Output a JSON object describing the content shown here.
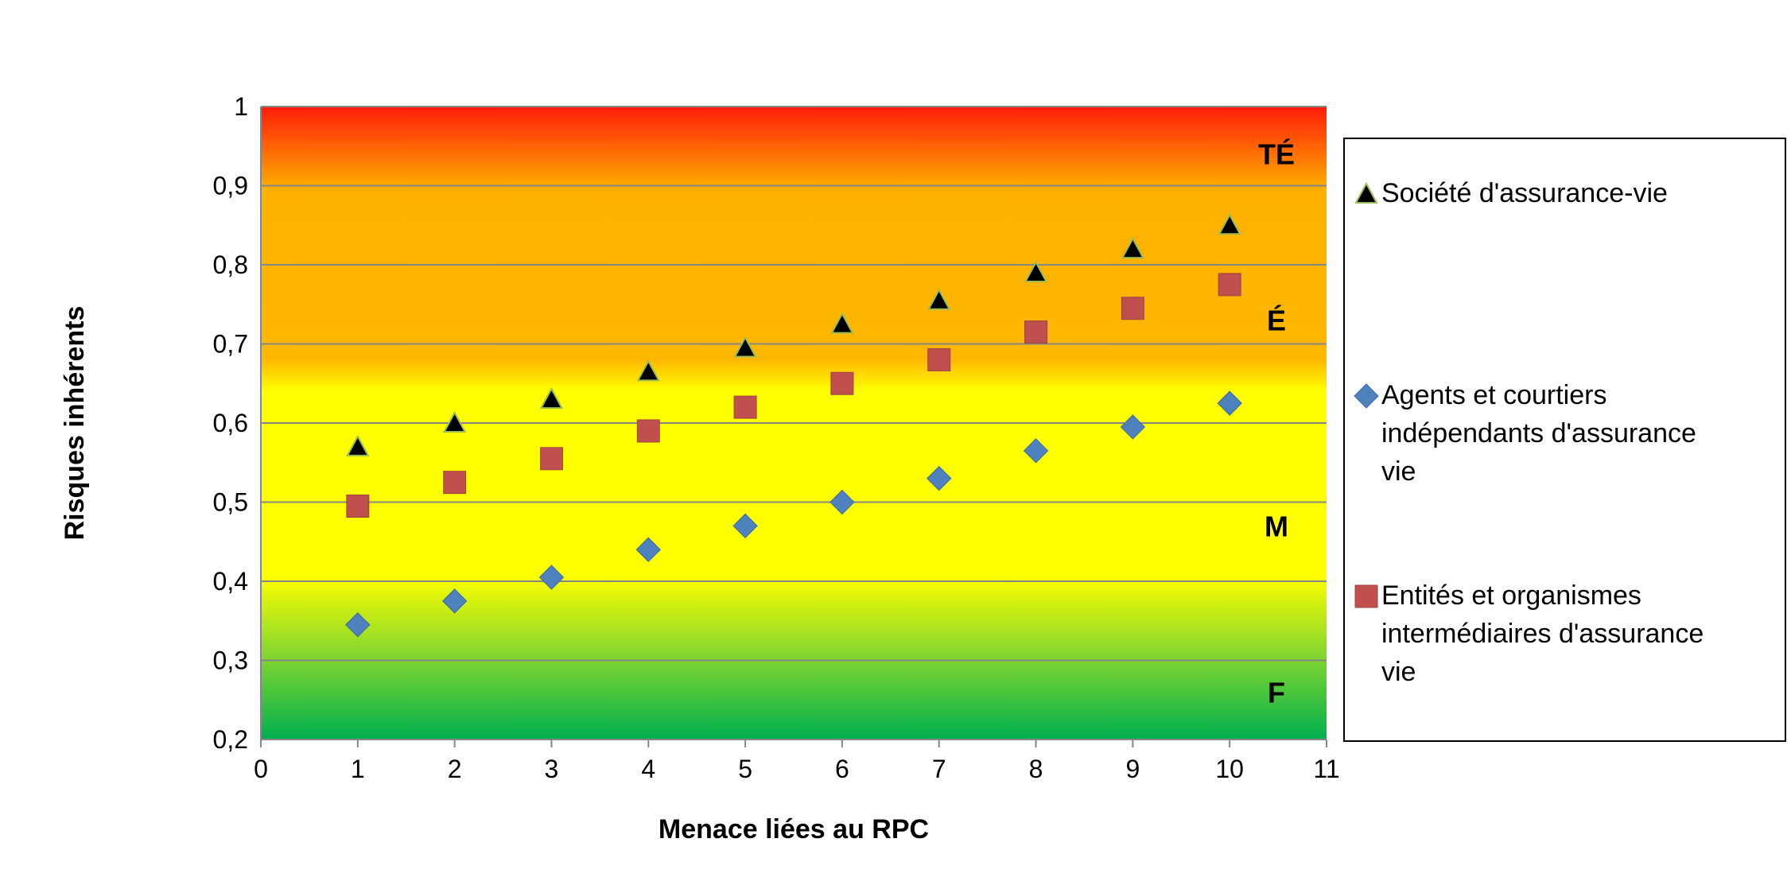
{
  "chart_data": {
    "type": "scatter",
    "title": "",
    "xlabel": "Menace liées au RPC",
    "ylabel": "Risques inhérents",
    "xlim": [
      0,
      11
    ],
    "ylim": [
      0.2,
      1
    ],
    "x_ticks": [
      "0",
      "1",
      "2",
      "3",
      "4",
      "5",
      "6",
      "7",
      "8",
      "9",
      "10",
      "11"
    ],
    "y_ticks": [
      "0,2",
      "0,3",
      "0,4",
      "0,5",
      "0,6",
      "0,7",
      "0,8",
      "0,9",
      "1"
    ],
    "grid": "horizontal",
    "legend_position": "right",
    "background_gradient": "red (top) to orange to yellow to green (bottom)",
    "band_labels": [
      {
        "label": "TÉ",
        "y": 0.94
      },
      {
        "label": "É",
        "y": 0.73
      },
      {
        "label": "M",
        "y": 0.47
      },
      {
        "label": "F",
        "y": 0.26
      }
    ],
    "series": [
      {
        "name": "Société d'assurance-vie",
        "marker": "triangle",
        "color": "#000000",
        "x": [
          1,
          2,
          3,
          4,
          5,
          6,
          7,
          8,
          9,
          10
        ],
        "y": [
          0.57,
          0.6,
          0.63,
          0.665,
          0.695,
          0.725,
          0.755,
          0.79,
          0.82,
          0.85
        ]
      },
      {
        "name": "Agents et courtiers indépendants d'assurance vie",
        "legend_lines": [
          "Agents et courtiers",
          "indépendants d'assurance",
          "vie"
        ],
        "marker": "diamond",
        "color": "#4F81BD",
        "x": [
          1,
          2,
          3,
          4,
          5,
          6,
          7,
          8,
          9,
          10
        ],
        "y": [
          0.345,
          0.375,
          0.405,
          0.44,
          0.47,
          0.5,
          0.53,
          0.565,
          0.595,
          0.625
        ]
      },
      {
        "name": "Entités et organismes intermédiaires d'assurance vie",
        "legend_lines": [
          "Entités et organismes",
          "intermédiaires d'assurance",
          "vie"
        ],
        "marker": "square",
        "color": "#C0504D",
        "x": [
          1,
          2,
          3,
          4,
          5,
          6,
          7,
          8,
          9,
          10
        ],
        "y": [
          0.495,
          0.525,
          0.555,
          0.59,
          0.62,
          0.65,
          0.68,
          0.715,
          0.745,
          0.775
        ]
      }
    ]
  }
}
